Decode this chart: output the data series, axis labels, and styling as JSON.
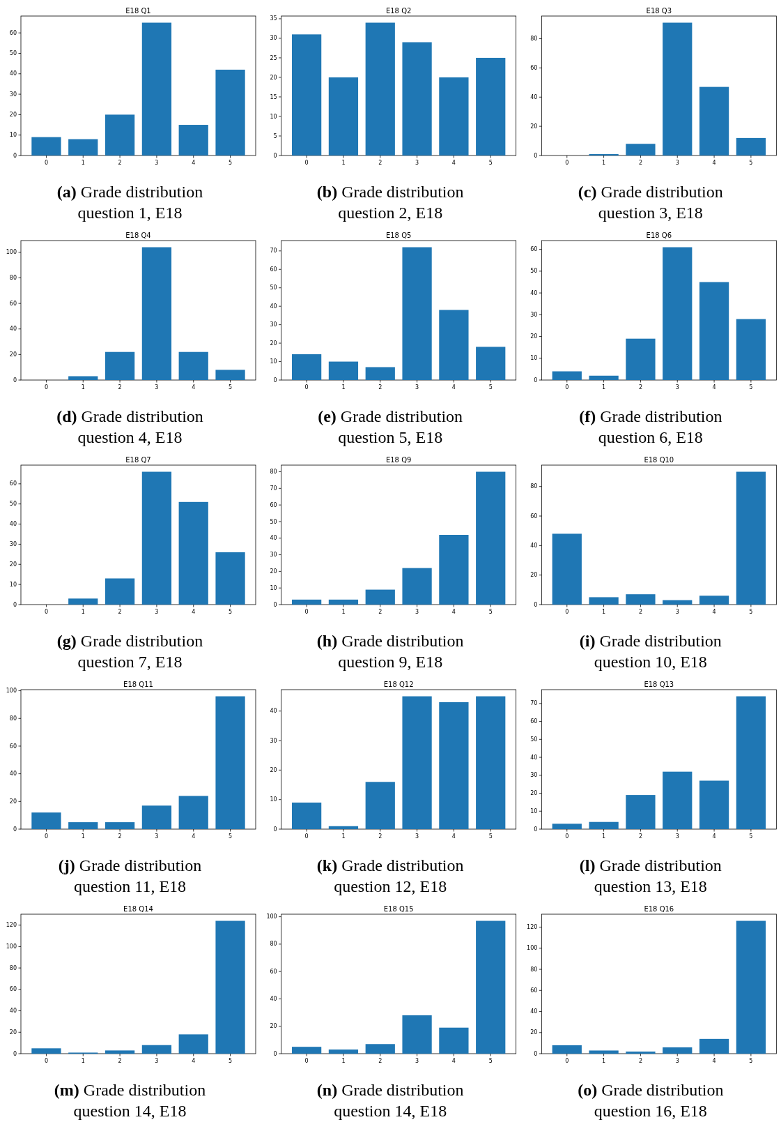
{
  "chart_data": [
    {
      "type": "bar",
      "title": "E18 Q1",
      "categories": [
        "0",
        "1",
        "2",
        "3",
        "4",
        "5"
      ],
      "values": [
        9,
        8,
        20,
        65,
        15,
        42
      ],
      "color": "#1f77b4",
      "ylim": [
        0,
        68.25
      ],
      "yticks": [
        0,
        10,
        20,
        30,
        40,
        50,
        60
      ],
      "annotations": [
        "(a) Grade distribution question 1, E18"
      ]
    },
    {
      "type": "bar",
      "title": "E18 Q2",
      "categories": [
        "0",
        "1",
        "2",
        "3",
        "4",
        "5"
      ],
      "values": [
        31,
        20,
        34,
        29,
        20,
        25
      ],
      "color": "#1f77b4",
      "ylim": [
        0,
        35.7
      ],
      "yticks": [
        0,
        5,
        10,
        15,
        20,
        25,
        30,
        35
      ],
      "annotations": [
        "(b) Grade distribution question 2, E18"
      ]
    },
    {
      "type": "bar",
      "title": "E18 Q3",
      "categories": [
        "0",
        "1",
        "2",
        "3",
        "4",
        "5"
      ],
      "values": [
        0,
        1,
        8,
        91,
        47,
        12
      ],
      "color": "#1f77b4",
      "ylim": [
        0,
        95.55
      ],
      "yticks": [
        0,
        20,
        40,
        60,
        80
      ],
      "annotations": [
        "(c) Grade distribution question 3, E18"
      ]
    },
    {
      "type": "bar",
      "title": "E18 Q4",
      "categories": [
        "0",
        "1",
        "2",
        "3",
        "4",
        "5"
      ],
      "values": [
        0,
        3,
        22,
        104,
        22,
        8
      ],
      "color": "#1f77b4",
      "ylim": [
        0,
        109.2
      ],
      "yticks": [
        0,
        20,
        40,
        60,
        80,
        100
      ],
      "annotations": [
        "(d) Grade distribution question 4, E18"
      ]
    },
    {
      "type": "bar",
      "title": "E18 Q5",
      "categories": [
        "0",
        "1",
        "2",
        "3",
        "4",
        "5"
      ],
      "values": [
        14,
        10,
        7,
        72,
        38,
        18
      ],
      "color": "#1f77b4",
      "ylim": [
        0,
        75.6
      ],
      "yticks": [
        0,
        10,
        20,
        30,
        40,
        50,
        60,
        70
      ],
      "annotations": [
        "(e) Grade distribution question 5, E18"
      ]
    },
    {
      "type": "bar",
      "title": "E18 Q6",
      "categories": [
        "0",
        "1",
        "2",
        "3",
        "4",
        "5"
      ],
      "values": [
        4,
        2,
        19,
        61,
        45,
        28
      ],
      "color": "#1f77b4",
      "ylim": [
        0,
        64.05
      ],
      "yticks": [
        0,
        10,
        20,
        30,
        40,
        50,
        60
      ],
      "annotations": [
        "(f) Grade distribution question 6, E18"
      ]
    },
    {
      "type": "bar",
      "title": "E18 Q7",
      "categories": [
        "0",
        "1",
        "2",
        "3",
        "4",
        "5"
      ],
      "values": [
        0,
        3,
        13,
        66,
        51,
        26
      ],
      "color": "#1f77b4",
      "ylim": [
        0,
        69.3
      ],
      "yticks": [
        0,
        10,
        20,
        30,
        40,
        50,
        60
      ],
      "annotations": [
        "(g) Grade distribution question 7, E18"
      ]
    },
    {
      "type": "bar",
      "title": "E18 Q9",
      "categories": [
        "0",
        "1",
        "2",
        "3",
        "4",
        "5"
      ],
      "values": [
        3,
        3,
        9,
        22,
        42,
        80
      ],
      "color": "#1f77b4",
      "ylim": [
        0,
        84
      ],
      "yticks": [
        0,
        10,
        20,
        30,
        40,
        50,
        60,
        70,
        80
      ],
      "annotations": [
        "(h) Grade distribution question 9, E18"
      ]
    },
    {
      "type": "bar",
      "title": "E18 Q10",
      "categories": [
        "0",
        "1",
        "2",
        "3",
        "4",
        "5"
      ],
      "values": [
        48,
        5,
        7,
        3,
        6,
        90
      ],
      "color": "#1f77b4",
      "ylim": [
        0,
        94.5
      ],
      "yticks": [
        0,
        20,
        40,
        60,
        80
      ],
      "annotations": [
        "(i) Grade distribution question 10, E18"
      ]
    },
    {
      "type": "bar",
      "title": "E18 Q11",
      "categories": [
        "0",
        "1",
        "2",
        "3",
        "4",
        "5"
      ],
      "values": [
        12,
        5,
        5,
        17,
        24,
        96
      ],
      "color": "#1f77b4",
      "ylim": [
        0,
        100.8
      ],
      "yticks": [
        0,
        20,
        40,
        60,
        80,
        100
      ],
      "annotations": [
        "(j) Grade distribution question 11, E18"
      ]
    },
    {
      "type": "bar",
      "title": "E18 Q12",
      "categories": [
        "0",
        "1",
        "2",
        "3",
        "4",
        "5"
      ],
      "values": [
        9,
        1,
        16,
        45,
        43,
        45
      ],
      "color": "#1f77b4",
      "ylim": [
        0,
        47.25
      ],
      "yticks": [
        0,
        10,
        20,
        30,
        40
      ],
      "annotations": [
        "(k) Grade distribution question 12, E18"
      ]
    },
    {
      "type": "bar",
      "title": "E18 Q13",
      "categories": [
        "0",
        "1",
        "2",
        "3",
        "4",
        "5"
      ],
      "values": [
        3,
        4,
        19,
        32,
        27,
        74
      ],
      "color": "#1f77b4",
      "ylim": [
        0,
        77.7
      ],
      "yticks": [
        0,
        10,
        20,
        30,
        40,
        50,
        60,
        70
      ],
      "annotations": [
        "(l) Grade distribution question 13, E18"
      ]
    },
    {
      "type": "bar",
      "title": "E18 Q14",
      "categories": [
        "0",
        "1",
        "2",
        "3",
        "4",
        "5"
      ],
      "values": [
        5,
        1,
        3,
        8,
        18,
        124
      ],
      "color": "#1f77b4",
      "ylim": [
        0,
        130.2
      ],
      "yticks": [
        0,
        20,
        40,
        60,
        80,
        100,
        120
      ],
      "annotations": [
        "(m) Grade distribution question 14, E18"
      ]
    },
    {
      "type": "bar",
      "title": "E18 Q15",
      "categories": [
        "0",
        "1",
        "2",
        "3",
        "4",
        "5"
      ],
      "values": [
        5,
        3,
        7,
        28,
        19,
        97
      ],
      "color": "#1f77b4",
      "ylim": [
        0,
        101.85
      ],
      "yticks": [
        0,
        20,
        40,
        60,
        80,
        100
      ],
      "annotations": [
        "(n) Grade distribution question 14, E18"
      ]
    },
    {
      "type": "bar",
      "title": "E18 Q16",
      "categories": [
        "0",
        "1",
        "2",
        "3",
        "4",
        "5"
      ],
      "values": [
        8,
        3,
        2,
        6,
        14,
        126
      ],
      "color": "#1f77b4",
      "ylim": [
        0,
        132.3
      ],
      "yticks": [
        0,
        20,
        40,
        60,
        80,
        100,
        120
      ],
      "annotations": [
        "(o) Grade distribution question 16, E18"
      ]
    }
  ]
}
